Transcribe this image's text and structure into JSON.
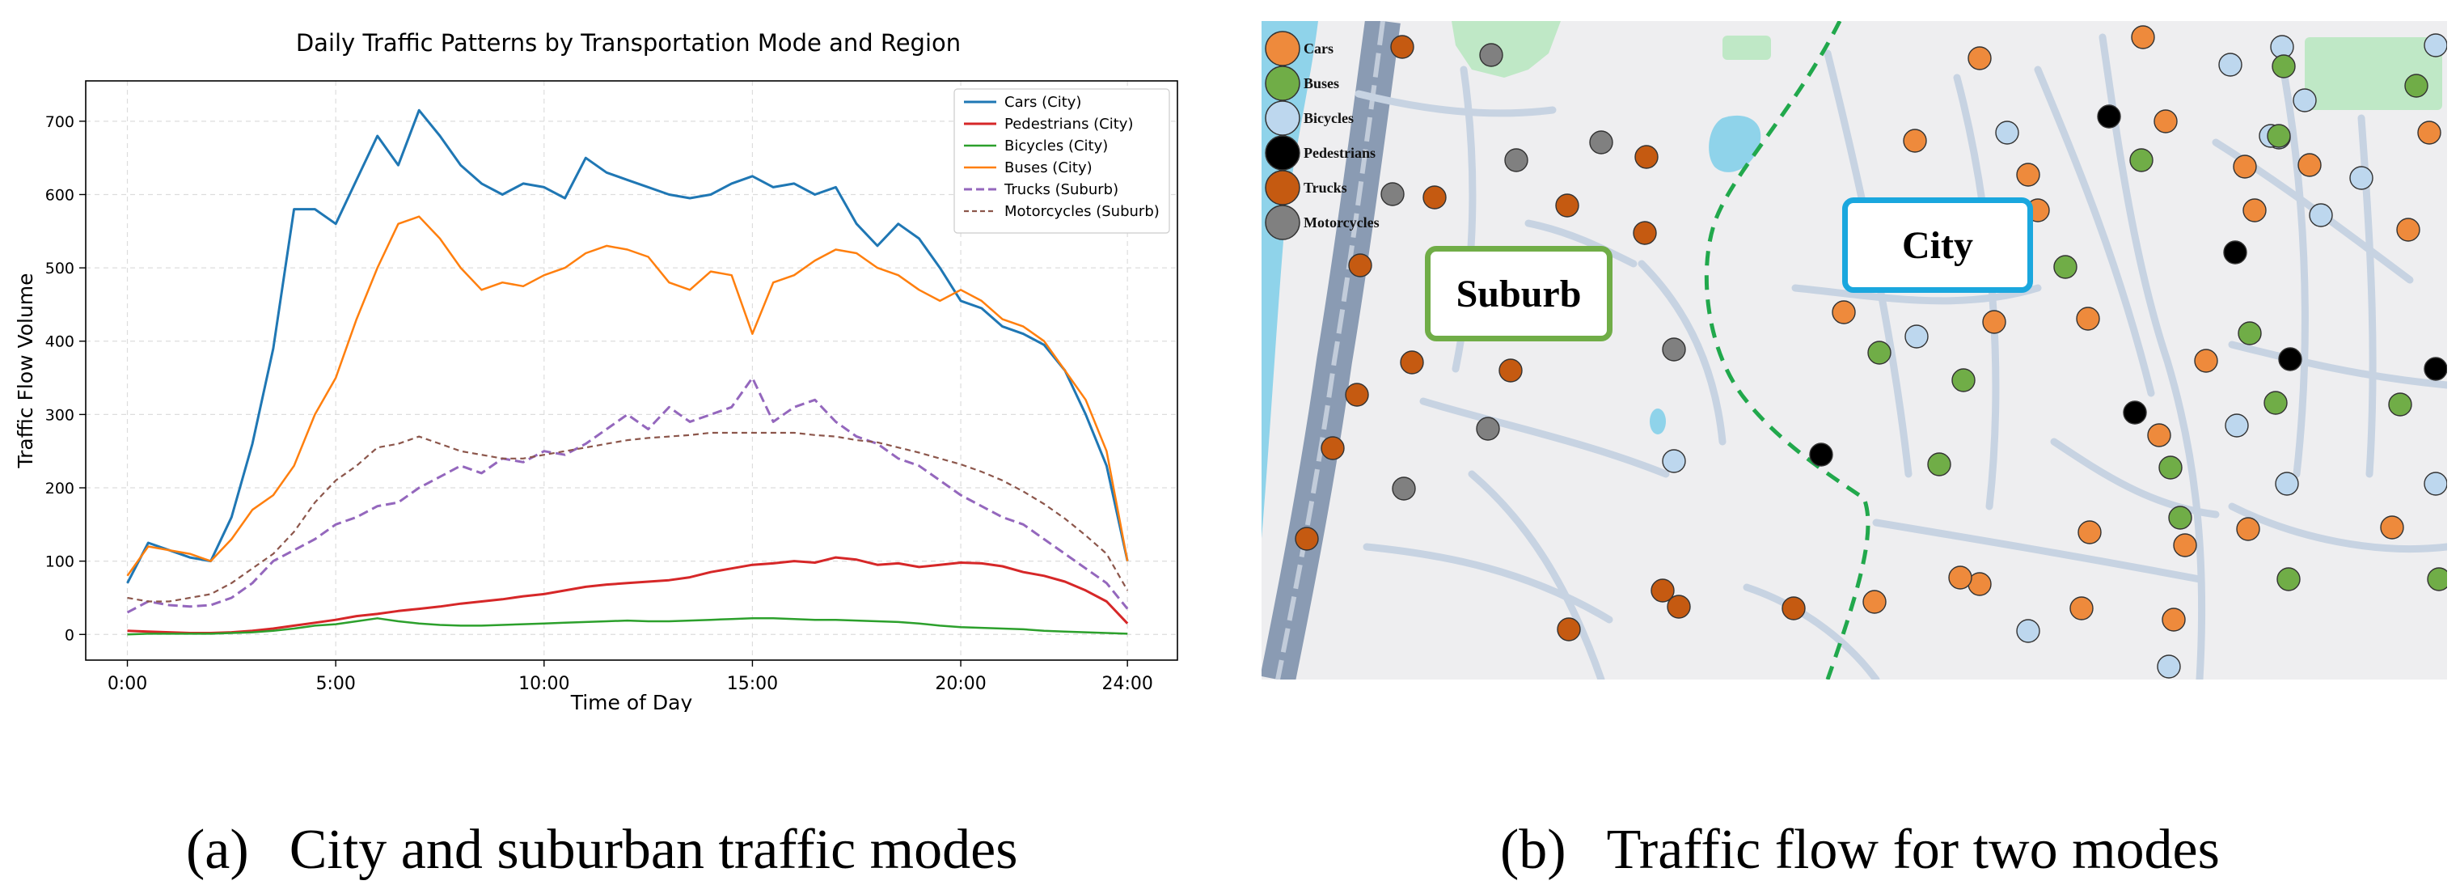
{
  "chart_data": {
    "type": "line",
    "title": "Daily Traffic Patterns by Transportation Mode and Region",
    "xlabel": "Time of Day",
    "ylabel": "Traffic Flow Volume",
    "xlim": [
      -1,
      25.2
    ],
    "ylim": [
      -35,
      755
    ],
    "xticks": [
      0,
      5,
      10,
      15,
      20,
      24
    ],
    "xtick_labels": [
      "0:00",
      "5:00",
      "10:00",
      "15:00",
      "20:00",
      "24:00"
    ],
    "yticks": [
      0,
      100,
      200,
      300,
      400,
      500,
      600,
      700
    ],
    "grid": true,
    "legend_position": "top-right",
    "x": [
      0,
      0.5,
      1,
      1.5,
      2,
      2.5,
      3,
      3.5,
      4,
      4.5,
      5,
      5.5,
      6,
      6.5,
      7,
      7.5,
      8,
      8.5,
      9,
      9.5,
      10,
      10.5,
      11,
      11.5,
      12,
      12.5,
      13,
      13.5,
      14,
      14.5,
      15,
      15.5,
      16,
      16.5,
      17,
      17.5,
      18,
      18.5,
      19,
      19.5,
      20,
      20.5,
      21,
      21.5,
      22,
      22.5,
      23,
      23.5,
      24
    ],
    "series": [
      {
        "name": "Cars (City)",
        "color": "#1f77b4",
        "style": "solid",
        "width": 3,
        "values": [
          70,
          125,
          115,
          105,
          100,
          160,
          260,
          390,
          580,
          580,
          560,
          620,
          680,
          640,
          715,
          680,
          640,
          615,
          600,
          615,
          610,
          595,
          650,
          630,
          620,
          610,
          600,
          595,
          600,
          615,
          625,
          610,
          615,
          600,
          610,
          560,
          530,
          560,
          540,
          500,
          455,
          445,
          420,
          410,
          395,
          360,
          300,
          230,
          100
        ]
      },
      {
        "name": "Pedestrians (City)",
        "color": "#d62728",
        "style": "solid",
        "width": 3,
        "values": [
          5,
          4,
          3,
          2,
          2,
          3,
          5,
          8,
          12,
          16,
          20,
          25,
          28,
          32,
          35,
          38,
          42,
          45,
          48,
          52,
          55,
          60,
          65,
          68,
          70,
          72,
          74,
          78,
          85,
          90,
          95,
          97,
          100,
          98,
          105,
          102,
          95,
          97,
          92,
          95,
          98,
          97,
          93,
          85,
          80,
          72,
          60,
          45,
          15
        ]
      },
      {
        "name": "Bicycles (City)",
        "color": "#2ca02c",
        "style": "solid",
        "width": 2.5,
        "values": [
          0,
          1,
          1,
          1,
          1,
          2,
          3,
          5,
          8,
          12,
          14,
          18,
          22,
          18,
          15,
          13,
          12,
          12,
          13,
          14,
          15,
          16,
          17,
          18,
          19,
          18,
          18,
          19,
          20,
          21,
          22,
          22,
          21,
          20,
          20,
          19,
          18,
          17,
          15,
          12,
          10,
          9,
          8,
          7,
          5,
          4,
          3,
          2,
          1
        ]
      },
      {
        "name": "Buses (City)",
        "color": "#ff7f0e",
        "style": "solid",
        "width": 2.5,
        "values": [
          80,
          120,
          115,
          110,
          100,
          130,
          170,
          190,
          230,
          300,
          350,
          430,
          500,
          560,
          570,
          540,
          500,
          470,
          480,
          475,
          490,
          500,
          520,
          530,
          525,
          515,
          480,
          470,
          495,
          490,
          410,
          480,
          490,
          510,
          525,
          520,
          500,
          490,
          470,
          455,
          470,
          455,
          430,
          420,
          400,
          360,
          320,
          250,
          100
        ]
      },
      {
        "name": "Trucks (Suburb)",
        "color": "#9467bd",
        "style": "dashed",
        "width": 3,
        "values": [
          30,
          45,
          40,
          38,
          40,
          50,
          70,
          100,
          115,
          130,
          150,
          160,
          175,
          180,
          200,
          215,
          230,
          220,
          240,
          235,
          250,
          245,
          260,
          280,
          300,
          280,
          310,
          290,
          300,
          310,
          350,
          290,
          310,
          320,
          290,
          270,
          260,
          240,
          230,
          210,
          190,
          175,
          160,
          150,
          130,
          110,
          90,
          70,
          35
        ]
      },
      {
        "name": "Motorcycles (Suburb)",
        "color": "#8c564b",
        "style": "dashed-fine",
        "width": 2.2,
        "values": [
          50,
          45,
          45,
          50,
          55,
          70,
          90,
          110,
          140,
          180,
          210,
          230,
          255,
          260,
          270,
          260,
          250,
          245,
          240,
          240,
          245,
          250,
          255,
          260,
          265,
          268,
          270,
          272,
          275,
          275,
          275,
          275,
          275,
          272,
          270,
          265,
          262,
          255,
          248,
          240,
          232,
          222,
          210,
          195,
          178,
          158,
          135,
          110,
          60
        ]
      }
    ]
  },
  "map": {
    "legend": [
      {
        "label": "Cars",
        "color": "#ee8a3c"
      },
      {
        "label": "Buses",
        "color": "#70ad47"
      },
      {
        "label": "Bicycles",
        "color": "#bdd7ee"
      },
      {
        "label": "Pedestrians",
        "color": "#000000"
      },
      {
        "label": "Trucks",
        "color": "#c55a11"
      },
      {
        "label": "Motorcycles",
        "color": "#808080"
      }
    ],
    "suburb_label": "Suburb",
    "city_label": "City",
    "suburb_color": "#70ad47",
    "city_color": "#1aa7de"
  },
  "captions": {
    "a_label": "(a)",
    "a_text": "City and suburban traffic modes",
    "b_label": "(b)",
    "b_text": "Traffic flow for two modes"
  }
}
